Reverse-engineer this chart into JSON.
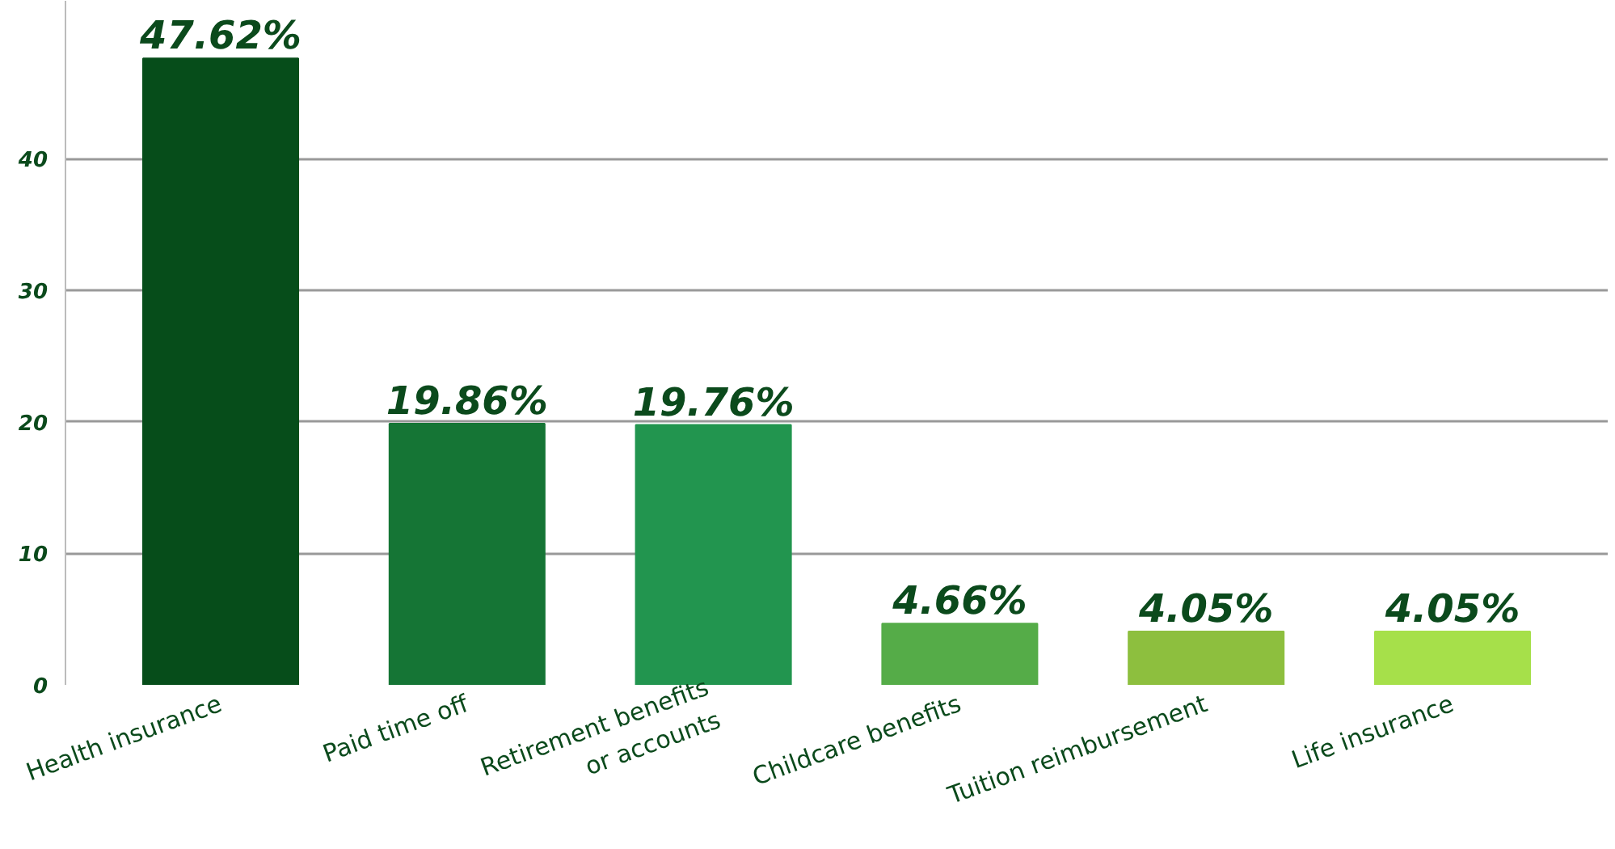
{
  "chart_data": {
    "type": "bar",
    "categories": [
      "Health insurance",
      "Paid time off",
      "Retirement benefits\nor accounts",
      "Childcare benefits",
      "Tuition reimbursement",
      "Life insurance"
    ],
    "values": [
      47.62,
      19.86,
      19.76,
      4.66,
      4.05,
      4.05
    ],
    "colors": [
      "#064d1a",
      "#157535",
      "#22954f",
      "#55ac48",
      "#8dbf3e",
      "#a6e04a"
    ],
    "value_labels": [
      "47.62%",
      "19.86%",
      "19.76%",
      "4.66%",
      "4.05%",
      "4.05%"
    ],
    "ylim": [
      0,
      52
    ],
    "yticks": [
      0,
      10,
      20,
      30,
      40
    ],
    "grid": "y"
  }
}
